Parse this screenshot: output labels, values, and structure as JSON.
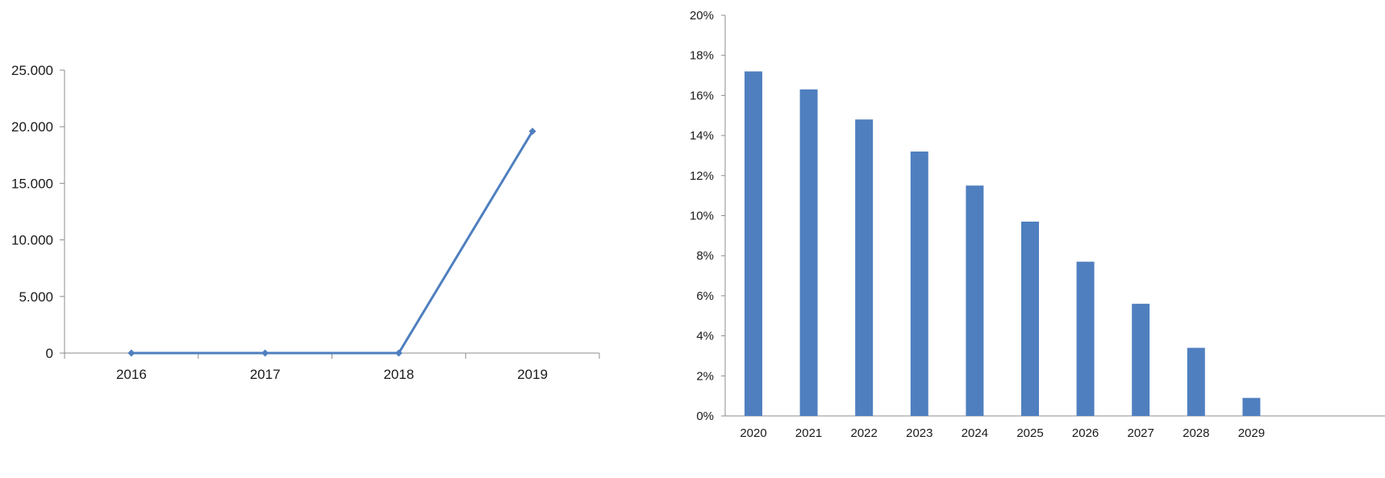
{
  "chart_data": [
    {
      "type": "line",
      "title": "",
      "xlabel": "",
      "ylabel": "",
      "categories": [
        "2016",
        "2017",
        "2018",
        "2019"
      ],
      "values": [
        0,
        0,
        0,
        19600
      ],
      "ylim": [
        0,
        25000
      ],
      "yticks": [
        "0",
        "5.000",
        "10.000",
        "15.000",
        "20.000",
        "25.000"
      ],
      "grid": false,
      "legend": "none",
      "color": "#4F7FBF"
    },
    {
      "type": "bar",
      "title": "",
      "xlabel": "",
      "ylabel": "",
      "categories": [
        "2020",
        "2021",
        "2022",
        "2023",
        "2024",
        "2025",
        "2026",
        "2027",
        "2028",
        "2029"
      ],
      "values": [
        17.2,
        16.3,
        14.8,
        13.2,
        11.5,
        9.7,
        7.7,
        5.6,
        3.4,
        0.9
      ],
      "ylim": [
        0,
        20
      ],
      "yticks": [
        "0%",
        "2%",
        "4%",
        "6%",
        "8%",
        "10%",
        "12%",
        "14%",
        "16%",
        "18%",
        "20%"
      ],
      "grid": false,
      "legend": "none",
      "color": "#4F7FBF"
    }
  ]
}
